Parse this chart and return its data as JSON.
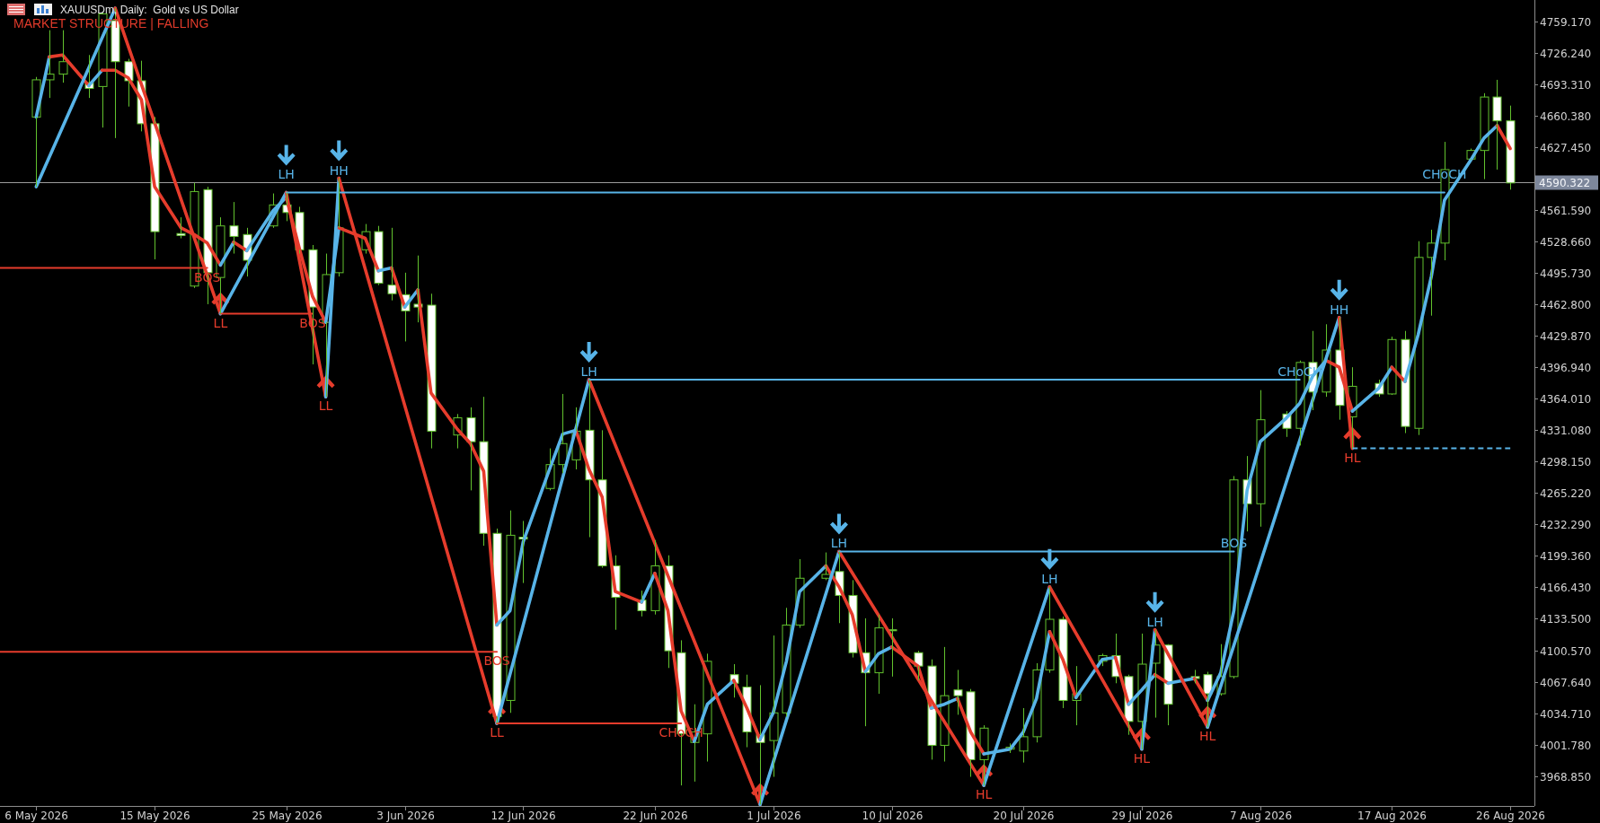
{
  "chart_data": {
    "type": "candlestick",
    "title": "XAUUSDm, Daily:  Gold vs US Dollar",
    "subtitle": "MARKET STRUCTURE | FALLING",
    "x": [
      "2026-05-06",
      "2026-05-07",
      "2026-05-08",
      "2026-05-10",
      "2026-05-11",
      "2026-05-12",
      "2026-05-13",
      "2026-05-14",
      "2026-05-15",
      "2026-05-17",
      "2026-05-18",
      "2026-05-19",
      "2026-05-20",
      "2026-05-21",
      "2026-05-22",
      "2026-05-24",
      "2026-05-25",
      "2026-05-26",
      "2026-05-27",
      "2026-05-28",
      "2026-05-29",
      "2026-05-31",
      "2026-06-01",
      "2026-06-02",
      "2026-06-03",
      "2026-06-04",
      "2026-06-05",
      "2026-06-07",
      "2026-06-08",
      "2026-06-09",
      "2026-06-10",
      "2026-06-11",
      "2026-06-12",
      "2026-06-14",
      "2026-06-15",
      "2026-06-16",
      "2026-06-17",
      "2026-06-18",
      "2026-06-19",
      "2026-06-21",
      "2026-06-22",
      "2026-06-23",
      "2026-06-24",
      "2026-06-25",
      "2026-06-26",
      "2026-06-28",
      "2026-06-29",
      "2026-06-30",
      "2026-07-01",
      "2026-07-02",
      "2026-07-03",
      "2026-07-05",
      "2026-07-06",
      "2026-07-07",
      "2026-07-08",
      "2026-07-09",
      "2026-07-10",
      "2026-07-12",
      "2026-07-13",
      "2026-07-14",
      "2026-07-15",
      "2026-07-16",
      "2026-07-17",
      "2026-07-19",
      "2026-07-20",
      "2026-07-21",
      "2026-07-22",
      "2026-07-23",
      "2026-07-24",
      "2026-07-26",
      "2026-07-27",
      "2026-07-28",
      "2026-07-29",
      "2026-07-30",
      "2026-07-31",
      "2026-08-02",
      "2026-08-03",
      "2026-08-04",
      "2026-08-05",
      "2026-08-06",
      "2026-08-07",
      "2026-08-09",
      "2026-08-10",
      "2026-08-11",
      "2026-08-12",
      "2026-08-13",
      "2026-08-14",
      "2026-08-16",
      "2026-08-17",
      "2026-08-18",
      "2026-08-19",
      "2026-08-20",
      "2026-08-21",
      "2026-08-23",
      "2026-08-24",
      "2026-08-25",
      "2026-08-26"
    ],
    "ohlc": [
      [
        4659,
        4701,
        4586,
        4698
      ],
      [
        4698,
        4750,
        4679,
        4704
      ],
      [
        4704,
        4750,
        4695,
        4717
      ],
      [
        4695,
        4724,
        4679,
        4689
      ],
      [
        4691,
        4769,
        4648,
        4767
      ],
      [
        4760,
        4773,
        4637,
        4717
      ],
      [
        4717,
        4720,
        4670,
        4697
      ],
      [
        4697,
        4718,
        4644,
        4652
      ],
      [
        4652,
        4659,
        4510,
        4539
      ],
      [
        4537,
        4554,
        4532,
        4535
      ],
      [
        4482,
        4590,
        4480,
        4581
      ],
      [
        4583,
        4586,
        4463,
        4496
      ],
      [
        4491,
        4554,
        4453,
        4545
      ],
      [
        4545,
        4570,
        4516,
        4534
      ],
      [
        4536,
        4543,
        4492,
        4509
      ],
      [
        4545,
        4579,
        4543,
        4567
      ],
      [
        4567,
        4580,
        4550,
        4559
      ],
      [
        4559,
        4565,
        4516,
        4520
      ],
      [
        4520,
        4525,
        4400,
        4460
      ],
      [
        4444,
        4516,
        4366,
        4494
      ],
      [
        4496,
        4595,
        4492,
        4543
      ],
      [
        4520,
        4547,
        4516,
        4539
      ],
      [
        4539,
        4545,
        4483,
        4485
      ],
      [
        4483,
        4543,
        4467,
        4474
      ],
      [
        4473,
        4496,
        4424,
        4456
      ],
      [
        4463,
        4514,
        4444,
        4460
      ],
      [
        4462,
        4474,
        4312,
        4330
      ],
      [
        4326,
        4348,
        4312,
        4344
      ],
      [
        4344,
        4355,
        4268,
        4319
      ],
      [
        4319,
        4366,
        4210,
        4223
      ],
      [
        4223,
        4228,
        4024,
        4031
      ],
      [
        4048,
        4247,
        4035,
        4221
      ],
      [
        4219,
        4236,
        4171,
        4217
      ],
      [
        4270,
        4312,
        4268,
        4295
      ],
      [
        4295,
        4369,
        4286,
        4317
      ],
      [
        4300,
        4355,
        4290,
        4330
      ],
      [
        4331,
        4384,
        4219,
        4279
      ],
      [
        4279,
        4331,
        4187,
        4189
      ],
      [
        4189,
        4200,
        4122,
        4156
      ],
      [
        4153,
        4163,
        4136,
        4142
      ],
      [
        4142,
        4216,
        4138,
        4189
      ],
      [
        4189,
        4200,
        4082,
        4100
      ],
      [
        4098,
        4111,
        3959,
        4013
      ],
      [
        4004,
        4044,
        3963,
        4015
      ],
      [
        4013,
        4097,
        3984,
        4089
      ],
      [
        4075,
        4086,
        4051,
        4066
      ],
      [
        4062,
        4075,
        3999,
        4015
      ],
      [
        4012,
        4064,
        3939,
        4004
      ],
      [
        4006,
        4116,
        3968,
        4035
      ],
      [
        4035,
        4145,
        4031,
        4127
      ],
      [
        4127,
        4196,
        4124,
        4176
      ],
      [
        4176,
        4203,
        4174,
        4180
      ],
      [
        4183,
        4204,
        4129,
        4158
      ],
      [
        4158,
        4174,
        4093,
        4098
      ],
      [
        4098,
        4134,
        4021,
        4077
      ],
      [
        4077,
        4138,
        4055,
        4124
      ],
      [
        4122,
        4134,
        4073,
        4121
      ],
      [
        4098,
        4100,
        4069,
        4084
      ],
      [
        4084,
        4091,
        3986,
        4001
      ],
      [
        4001,
        4104,
        3984,
        4053
      ],
      [
        4059,
        4080,
        4033,
        4053
      ],
      [
        4057,
        4060,
        3968,
        3986
      ],
      [
        3986,
        4022,
        3959,
        4019
      ],
      [
        3997,
        4003,
        3993,
        3999
      ],
      [
        3995,
        4040,
        3983,
        4010
      ],
      [
        4010,
        4087,
        4004,
        4080
      ],
      [
        4080,
        4167,
        4077,
        4133
      ],
      [
        4133,
        4136,
        4040,
        4048
      ],
      [
        4048,
        4084,
        4022,
        4055
      ],
      [
        4089,
        4097,
        4084,
        4095
      ],
      [
        4095,
        4118,
        4066,
        4073
      ],
      [
        4073,
        4075,
        4012,
        4026
      ],
      [
        4026,
        4118,
        3997,
        4086
      ],
      [
        4087,
        4122,
        4030,
        4106
      ],
      [
        4106,
        4107,
        4022,
        4044
      ],
      [
        4073,
        4080,
        4066,
        4071
      ],
      [
        4075,
        4078,
        4020,
        4055
      ],
      [
        4055,
        4107,
        4053,
        4073
      ],
      [
        4073,
        4283,
        4071,
        4279
      ],
      [
        4279,
        4304,
        4225,
        4254
      ],
      [
        4254,
        4373,
        4230,
        4342
      ],
      [
        4348,
        4351,
        4324,
        4333
      ],
      [
        4333,
        4404,
        4315,
        4402
      ],
      [
        4402,
        4435,
        4352,
        4371
      ],
      [
        4371,
        4442,
        4366,
        4415
      ],
      [
        4415,
        4449,
        4342,
        4357
      ],
      [
        4345,
        4397,
        4312,
        4377
      ],
      [
        4380,
        4384,
        4366,
        4369
      ],
      [
        4369,
        4429,
        4368,
        4426
      ],
      [
        4426,
        4435,
        4328,
        4335
      ],
      [
        4333,
        4529,
        4326,
        4512
      ],
      [
        4512,
        4541,
        4451,
        4527
      ],
      [
        4527,
        4633,
        4509,
        4604
      ],
      [
        4615,
        4626,
        4614,
        4624
      ],
      [
        4624,
        4684,
        4594,
        4680
      ],
      [
        4680,
        4698,
        4604,
        4655
      ],
      [
        4655,
        4671,
        4583,
        4590
      ]
    ],
    "xlim": [
      "2026-05-03T06:00",
      "2026-08-27T20:00"
    ],
    "xticks": [
      {
        "value": "2026-05-06",
        "label": "6 May 2026"
      },
      {
        "value": "2026-05-15",
        "label": "15 May 2026"
      },
      {
        "value": "2026-05-25",
        "label": "25 May 2026"
      },
      {
        "value": "2026-06-03",
        "label": "3 Jun 2026"
      },
      {
        "value": "2026-06-12",
        "label": "12 Jun 2026"
      },
      {
        "value": "2026-06-22",
        "label": "22 Jun 2026"
      },
      {
        "value": "2026-07-01",
        "label": "1 Jul 2026"
      },
      {
        "value": "2026-07-10",
        "label": "10 Jul 2026"
      },
      {
        "value": "2026-07-20",
        "label": "20 Jul 2026"
      },
      {
        "value": "2026-07-29",
        "label": "29 Jul 2026"
      },
      {
        "value": "2026-08-07",
        "label": "7 Aug 2026"
      },
      {
        "value": "2026-08-17",
        "label": "17 Aug 2026"
      },
      {
        "value": "2026-08-26",
        "label": "26 Aug 2026"
      }
    ],
    "ylim": [
      3937.5,
      4781.6
    ],
    "yticks": [
      {
        "value": 3968.85,
        "label": "3968.850"
      },
      {
        "value": 4001.78,
        "label": "4001.780"
      },
      {
        "value": 4034.71,
        "label": "4034.710"
      },
      {
        "value": 4067.64,
        "label": "4067.640"
      },
      {
        "value": 4100.57,
        "label": "4100.570"
      },
      {
        "value": 4133.5,
        "label": "4133.500"
      },
      {
        "value": 4166.43,
        "label": "4166.430"
      },
      {
        "value": 4199.36,
        "label": "4199.360"
      },
      {
        "value": 4232.29,
        "label": "4232.290"
      },
      {
        "value": 4265.22,
        "label": "4265.220"
      },
      {
        "value": 4298.15,
        "label": "4298.150"
      },
      {
        "value": 4331.08,
        "label": "4331.080"
      },
      {
        "value": 4364.01,
        "label": "4364.010"
      },
      {
        "value": 4396.94,
        "label": "4396.940"
      },
      {
        "value": 4429.87,
        "label": "4429.870"
      },
      {
        "value": 4462.8,
        "label": "4462.800"
      },
      {
        "value": 4495.73,
        "label": "4495.730"
      },
      {
        "value": 4528.66,
        "label": "4528.660"
      },
      {
        "value": 4561.59,
        "label": "4561.590"
      },
      {
        "value": 4627.45,
        "label": "4627.450"
      },
      {
        "value": 4660.38,
        "label": "4660.380"
      },
      {
        "value": 4693.31,
        "label": "4693.310"
      },
      {
        "value": 4726.24,
        "label": "4726.240"
      },
      {
        "value": 4759.17,
        "label": "4759.170"
      }
    ],
    "series": [
      {
        "type": "line",
        "x": [
          "2026-05-06",
          "2026-05-07"
        ],
        "values": [
          4659,
          4722
        ],
        "color": "#58b4e8"
      },
      {
        "type": "line",
        "x": [
          "2026-05-07",
          "2026-05-08",
          "2026-05-10"
        ],
        "values": [
          4722,
          4724,
          4692
        ],
        "color": "#e63c2c"
      },
      {
        "type": "line",
        "x": [
          "2026-05-10",
          "2026-05-11"
        ],
        "values": [
          4692,
          4708
        ],
        "color": "#58b4e8"
      },
      {
        "type": "line",
        "x": [
          "2026-05-11",
          "2026-05-12",
          "2026-05-13",
          "2026-05-14",
          "2026-05-15",
          "2026-05-17",
          "2026-05-18",
          "2026-05-19",
          "2026-05-20"
        ],
        "values": [
          4708,
          4708,
          4700,
          4677,
          4586,
          4543,
          4536,
          4527,
          4504
        ],
        "color": "#e63c2c"
      },
      {
        "type": "line",
        "x": [
          "2026-05-20",
          "2026-05-21"
        ],
        "values": [
          4504,
          4528
        ],
        "color": "#58b4e8"
      },
      {
        "type": "line",
        "x": [
          "2026-05-21",
          "2026-05-22"
        ],
        "values": [
          4528,
          4519
        ],
        "color": "#e63c2c"
      },
      {
        "type": "line",
        "x": [
          "2026-05-22",
          "2026-05-24",
          "2026-05-25"
        ],
        "values": [
          4519,
          4561,
          4575
        ],
        "color": "#58b4e8"
      },
      {
        "type": "line",
        "x": [
          "2026-05-25",
          "2026-05-26",
          "2026-05-27",
          "2026-05-28"
        ],
        "values": [
          4575,
          4521,
          4471,
          4444
        ],
        "color": "#e63c2c"
      },
      {
        "type": "line",
        "x": [
          "2026-05-28",
          "2026-05-29"
        ],
        "values": [
          4444,
          4543
        ],
        "color": "#58b4e8"
      },
      {
        "type": "line",
        "x": [
          "2026-05-29",
          "2026-05-31",
          "2026-06-01"
        ],
        "values": [
          4543,
          4532,
          4498
        ],
        "color": "#e63c2c"
      },
      {
        "type": "line",
        "x": [
          "2026-06-01",
          "2026-06-02"
        ],
        "values": [
          4498,
          4501
        ],
        "color": "#58b4e8"
      },
      {
        "type": "line",
        "x": [
          "2026-06-02",
          "2026-06-03"
        ],
        "values": [
          4501,
          4460
        ],
        "color": "#e63c2c"
      },
      {
        "type": "line",
        "x": [
          "2026-06-03",
          "2026-06-04"
        ],
        "values": [
          4460,
          4478
        ],
        "color": "#58b4e8"
      },
      {
        "type": "line",
        "x": [
          "2026-06-04",
          "2026-06-05",
          "2026-06-07",
          "2026-06-08",
          "2026-06-09",
          "2026-06-10"
        ],
        "values": [
          4478,
          4370,
          4332,
          4317,
          4288,
          4127
        ],
        "color": "#e63c2c"
      },
      {
        "type": "line",
        "x": [
          "2026-06-10",
          "2026-06-11",
          "2026-06-12",
          "2026-06-14",
          "2026-06-15",
          "2026-06-16"
        ],
        "values": [
          4127,
          4142,
          4214,
          4290,
          4327,
          4331
        ],
        "color": "#58b4e8"
      },
      {
        "type": "line",
        "x": [
          "2026-06-16",
          "2026-06-17",
          "2026-06-18",
          "2026-06-19",
          "2026-06-21"
        ],
        "values": [
          4331,
          4290,
          4261,
          4162,
          4151
        ],
        "color": "#e63c2c"
      },
      {
        "type": "line",
        "x": [
          "2026-06-21",
          "2026-06-22"
        ],
        "values": [
          4151,
          4181
        ],
        "color": "#58b4e8"
      },
      {
        "type": "line",
        "x": [
          "2026-06-22",
          "2026-06-23",
          "2026-06-24",
          "2026-06-25"
        ],
        "values": [
          4181,
          4142,
          4037,
          4005
        ],
        "color": "#e63c2c"
      },
      {
        "type": "line",
        "x": [
          "2026-06-25",
          "2026-06-26",
          "2026-06-28"
        ],
        "values": [
          4005,
          4044,
          4069
        ],
        "color": "#58b4e8"
      },
      {
        "type": "line",
        "x": [
          "2026-06-28",
          "2026-06-29",
          "2026-06-30"
        ],
        "values": [
          4069,
          4040,
          4007
        ],
        "color": "#e63c2c"
      },
      {
        "type": "line",
        "x": [
          "2026-06-30",
          "2026-07-01",
          "2026-07-02",
          "2026-07-03",
          "2026-07-05"
        ],
        "values": [
          4007,
          4035,
          4089,
          4162,
          4189
        ],
        "color": "#58b4e8"
      },
      {
        "type": "line",
        "x": [
          "2026-07-05",
          "2026-07-06",
          "2026-07-07",
          "2026-07-08"
        ],
        "values": [
          4189,
          4167,
          4138,
          4078
        ],
        "color": "#e63c2c"
      },
      {
        "type": "line",
        "x": [
          "2026-07-08",
          "2026-07-09",
          "2026-07-10"
        ],
        "values": [
          4078,
          4097,
          4104
        ],
        "color": "#58b4e8"
      },
      {
        "type": "line",
        "x": [
          "2026-07-10",
          "2026-07-12",
          "2026-07-13"
        ],
        "values": [
          4104,
          4084,
          4040
        ],
        "color": "#e63c2c"
      },
      {
        "type": "line",
        "x": [
          "2026-07-13",
          "2026-07-14",
          "2026-07-15"
        ],
        "values": [
          4040,
          4044,
          4050
        ],
        "color": "#58b4e8"
      },
      {
        "type": "line",
        "x": [
          "2026-07-15",
          "2026-07-16",
          "2026-07-17"
        ],
        "values": [
          4050,
          4015,
          3992
        ],
        "color": "#e63c2c"
      },
      {
        "type": "line",
        "x": [
          "2026-07-17",
          "2026-07-19",
          "2026-07-20",
          "2026-07-21",
          "2026-07-22"
        ],
        "values": [
          3992,
          3997,
          4015,
          4050,
          4120
        ],
        "color": "#58b4e8"
      },
      {
        "type": "line",
        "x": [
          "2026-07-22",
          "2026-07-23",
          "2026-07-24"
        ],
        "values": [
          4120,
          4091,
          4051
        ],
        "color": "#e63c2c"
      },
      {
        "type": "line",
        "x": [
          "2026-07-24",
          "2026-07-26",
          "2026-07-27"
        ],
        "values": [
          4051,
          4091,
          4093
        ],
        "color": "#58b4e8"
      },
      {
        "type": "line",
        "x": [
          "2026-07-27",
          "2026-07-28"
        ],
        "values": [
          4093,
          4044
        ],
        "color": "#e63c2c"
      },
      {
        "type": "line",
        "x": [
          "2026-07-28",
          "2026-07-29",
          "2026-07-30"
        ],
        "values": [
          4044,
          4059,
          4075
        ],
        "color": "#58b4e8"
      },
      {
        "type": "line",
        "x": [
          "2026-07-30",
          "2026-07-31"
        ],
        "values": [
          4075,
          4066
        ],
        "color": "#e63c2c"
      },
      {
        "type": "line",
        "x": [
          "2026-07-31",
          "2026-08-02"
        ],
        "values": [
          4066,
          4071
        ],
        "color": "#58b4e8"
      },
      {
        "type": "line",
        "x": [
          "2026-08-02",
          "2026-08-03"
        ],
        "values": [
          4071,
          4048
        ],
        "color": "#e63c2c"
      },
      {
        "type": "line",
        "x": [
          "2026-08-03",
          "2026-08-04",
          "2026-08-05",
          "2026-08-06",
          "2026-08-07",
          "2026-08-09",
          "2026-08-10",
          "2026-08-11",
          "2026-08-12"
        ],
        "values": [
          4048,
          4077,
          4142,
          4268,
          4319,
          4344,
          4359,
          4388,
          4404
        ],
        "color": "#58b4e8"
      },
      {
        "type": "line",
        "x": [
          "2026-08-12",
          "2026-08-13",
          "2026-08-14"
        ],
        "values": [
          4404,
          4397,
          4351
        ],
        "color": "#e63c2c"
      },
      {
        "type": "line",
        "x": [
          "2026-08-14",
          "2026-08-16",
          "2026-08-17"
        ],
        "values": [
          4351,
          4375,
          4397
        ],
        "color": "#58b4e8"
      },
      {
        "type": "line",
        "x": [
          "2026-08-17",
          "2026-08-18"
        ],
        "values": [
          4397,
          4382
        ],
        "color": "#e63c2c"
      },
      {
        "type": "line",
        "x": [
          "2026-08-18",
          "2026-08-19",
          "2026-08-20",
          "2026-08-21",
          "2026-08-23",
          "2026-08-24",
          "2026-08-25"
        ],
        "values": [
          4382,
          4431,
          4492,
          4572,
          4614,
          4637,
          4650
        ],
        "color": "#58b4e8"
      },
      {
        "type": "line",
        "x": [
          "2026-08-25",
          "2026-08-26"
        ],
        "values": [
          4650,
          4626
        ],
        "color": "#e63c2c"
      },
      {
        "type": "line",
        "x": [
          "2026-05-06",
          "2026-05-12"
        ],
        "values": [
          4586,
          4773
        ],
        "color": "#58b4e8"
      },
      {
        "type": "line",
        "x": [
          "2026-05-12",
          "2026-05-20"
        ],
        "values": [
          4773,
          4453
        ],
        "color": "#e63c2c"
      },
      {
        "type": "line",
        "x": [
          "2026-05-20",
          "2026-05-25"
        ],
        "values": [
          4453,
          4580
        ],
        "color": "#58b4e8"
      },
      {
        "type": "line",
        "x": [
          "2026-05-25",
          "2026-05-28"
        ],
        "values": [
          4580,
          4366
        ],
        "color": "#e63c2c"
      },
      {
        "type": "line",
        "x": [
          "2026-05-28",
          "2026-05-29"
        ],
        "values": [
          4366,
          4595
        ],
        "color": "#58b4e8"
      },
      {
        "type": "line",
        "x": [
          "2026-05-29",
          "2026-06-10"
        ],
        "values": [
          4595,
          4024
        ],
        "color": "#e63c2c"
      },
      {
        "type": "line",
        "x": [
          "2026-06-10",
          "2026-06-17"
        ],
        "values": [
          4024,
          4384
        ],
        "color": "#58b4e8"
      },
      {
        "type": "line",
        "x": [
          "2026-06-17",
          "2026-06-30"
        ],
        "values": [
          4384,
          3939
        ],
        "color": "#e63c2c"
      },
      {
        "type": "line",
        "x": [
          "2026-06-30",
          "2026-07-06"
        ],
        "values": [
          3939,
          4204
        ],
        "color": "#58b4e8"
      },
      {
        "type": "line",
        "x": [
          "2026-07-06",
          "2026-07-17"
        ],
        "values": [
          4204,
          3959
        ],
        "color": "#e63c2c"
      },
      {
        "type": "line",
        "x": [
          "2026-07-17",
          "2026-07-22"
        ],
        "values": [
          3959,
          4167
        ],
        "color": "#58b4e8"
      },
      {
        "type": "line",
        "x": [
          "2026-07-22",
          "2026-07-29"
        ],
        "values": [
          4167,
          3997
        ],
        "color": "#e63c2c"
      },
      {
        "type": "line",
        "x": [
          "2026-07-29",
          "2026-07-30"
        ],
        "values": [
          3997,
          4122
        ],
        "color": "#58b4e8"
      },
      {
        "type": "line",
        "x": [
          "2026-07-30",
          "2026-08-03"
        ],
        "values": [
          4122,
          4020
        ],
        "color": "#e63c2c"
      },
      {
        "type": "line",
        "x": [
          "2026-08-03",
          "2026-08-13"
        ],
        "values": [
          4020,
          4449
        ],
        "color": "#58b4e8"
      },
      {
        "type": "line",
        "x": [
          "2026-08-13",
          "2026-08-14"
        ],
        "values": [
          4449,
          4312
        ],
        "color": "#e63c2c"
      },
      {
        "type": "line",
        "x": [
          "2026-05-03T06:00",
          "2026-05-19"
        ],
        "values": [
          4501,
          4501
        ],
        "color": "#e63c2c"
      },
      {
        "type": "line",
        "x": [
          "2026-05-20",
          "2026-05-27"
        ],
        "values": [
          4453,
          4453
        ],
        "color": "#e63c2c"
      },
      {
        "type": "line",
        "x": [
          "2026-05-03T06:00",
          "2026-06-10"
        ],
        "values": [
          4099,
          4099
        ],
        "color": "#e63c2c"
      },
      {
        "type": "line",
        "x": [
          "2026-06-10",
          "2026-06-24"
        ],
        "values": [
          4024,
          4024
        ],
        "color": "#e63c2c"
      },
      {
        "type": "line",
        "x": [
          "2026-05-25",
          "2026-08-21"
        ],
        "values": [
          4580,
          4580
        ],
        "color": "#58b4e8"
      },
      {
        "type": "line",
        "x": [
          "2026-06-17",
          "2026-08-10"
        ],
        "values": [
          4384,
          4384
        ],
        "color": "#58b4e8"
      },
      {
        "type": "line",
        "x": [
          "2026-07-06",
          "2026-08-05"
        ],
        "values": [
          4204,
          4204
        ],
        "color": "#58b4e8"
      },
      {
        "type": "line",
        "x": [
          "2026-08-14",
          "2026-08-26"
        ],
        "values": [
          4312,
          4312
        ],
        "color": "#58b4e8",
        "line_style": "dashed"
      }
    ],
    "ref_lines": [
      {
        "axis": "y",
        "value": 4590.322,
        "label": "4590.322",
        "color": "#9c9c9c"
      }
    ],
    "annotations": [
      {
        "text": "BOS",
        "x": "2026-05-19",
        "y": 4501
      },
      {
        "text": "LL",
        "x": "2026-05-20",
        "y": 4453
      },
      {
        "text": "LH",
        "x": "2026-05-25",
        "y": 4580
      },
      {
        "text": "BOS",
        "x": "2026-05-27",
        "y": 4453
      },
      {
        "text": "LL",
        "x": "2026-05-28",
        "y": 4366
      },
      {
        "text": "HH",
        "x": "2026-05-29",
        "y": 4595
      },
      {
        "text": "BOS",
        "x": "2026-06-10",
        "y": 4099
      },
      {
        "text": "LL",
        "x": "2026-06-10",
        "y": 4024
      },
      {
        "text": "LH",
        "x": "2026-06-17",
        "y": 4384
      },
      {
        "text": "CHoCH",
        "x": "2026-06-24",
        "y": 4024
      },
      {
        "text": "LH",
        "x": "2026-07-06",
        "y": 4204
      },
      {
        "text": "HL",
        "x": "2026-07-17",
        "y": 3959
      },
      {
        "text": "LH",
        "x": "2026-07-22",
        "y": 4167
      },
      {
        "text": "HL",
        "x": "2026-07-29",
        "y": 3997
      },
      {
        "text": "LH",
        "x": "2026-07-30",
        "y": 4122
      },
      {
        "text": "HL",
        "x": "2026-08-03",
        "y": 4020
      },
      {
        "text": "BOS",
        "x": "2026-08-05",
        "y": 4204
      },
      {
        "text": "CHoCH",
        "x": "2026-08-10",
        "y": 4384
      },
      {
        "text": "HH",
        "x": "2026-08-13",
        "y": 4449
      },
      {
        "text": "HL",
        "x": "2026-08-14",
        "y": 4312
      },
      {
        "text": "CHoCH",
        "x": "2026-08-21",
        "y": 4580
      }
    ]
  }
}
